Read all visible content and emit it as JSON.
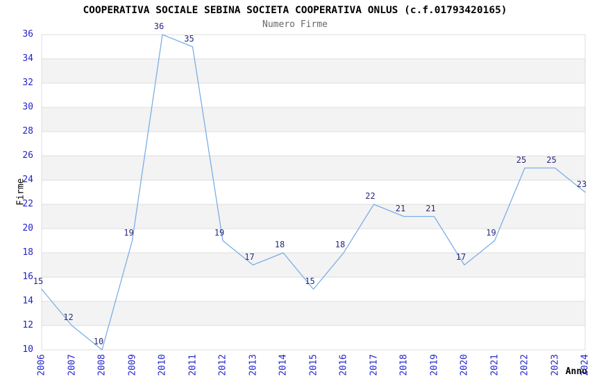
{
  "chart_data": {
    "type": "line",
    "title": "COOPERATIVA SOCIALE SEBINA SOCIETA COOPERATIVA ONLUS (c.f.01793420165)",
    "subtitle": "Numero Firme",
    "xlabel": "Anno",
    "ylabel": "Firme",
    "x": [
      2006,
      2007,
      2008,
      2009,
      2010,
      2011,
      2012,
      2013,
      2014,
      2015,
      2016,
      2017,
      2018,
      2019,
      2020,
      2021,
      2022,
      2023,
      2024
    ],
    "series": [
      {
        "name": "Numero Firme",
        "values": [
          15,
          12,
          10,
          19,
          36,
          35,
          19,
          17,
          18,
          15,
          18,
          22,
          21,
          21,
          17,
          19,
          25,
          25,
          23
        ]
      }
    ],
    "ylim": [
      10,
      36
    ],
    "ytick_step": 2,
    "xtick_rotation": -90,
    "grid": true,
    "legend": "none",
    "colors": {
      "line": "#7aaee8",
      "data_label": "#28287d",
      "tick_label": "#2222cc",
      "title": "#000000",
      "subtitle": "#666666",
      "axis_title": "#000000",
      "gridline": "#dcdcdc",
      "band": "#f3f3f3",
      "background": "#ffffff"
    }
  }
}
